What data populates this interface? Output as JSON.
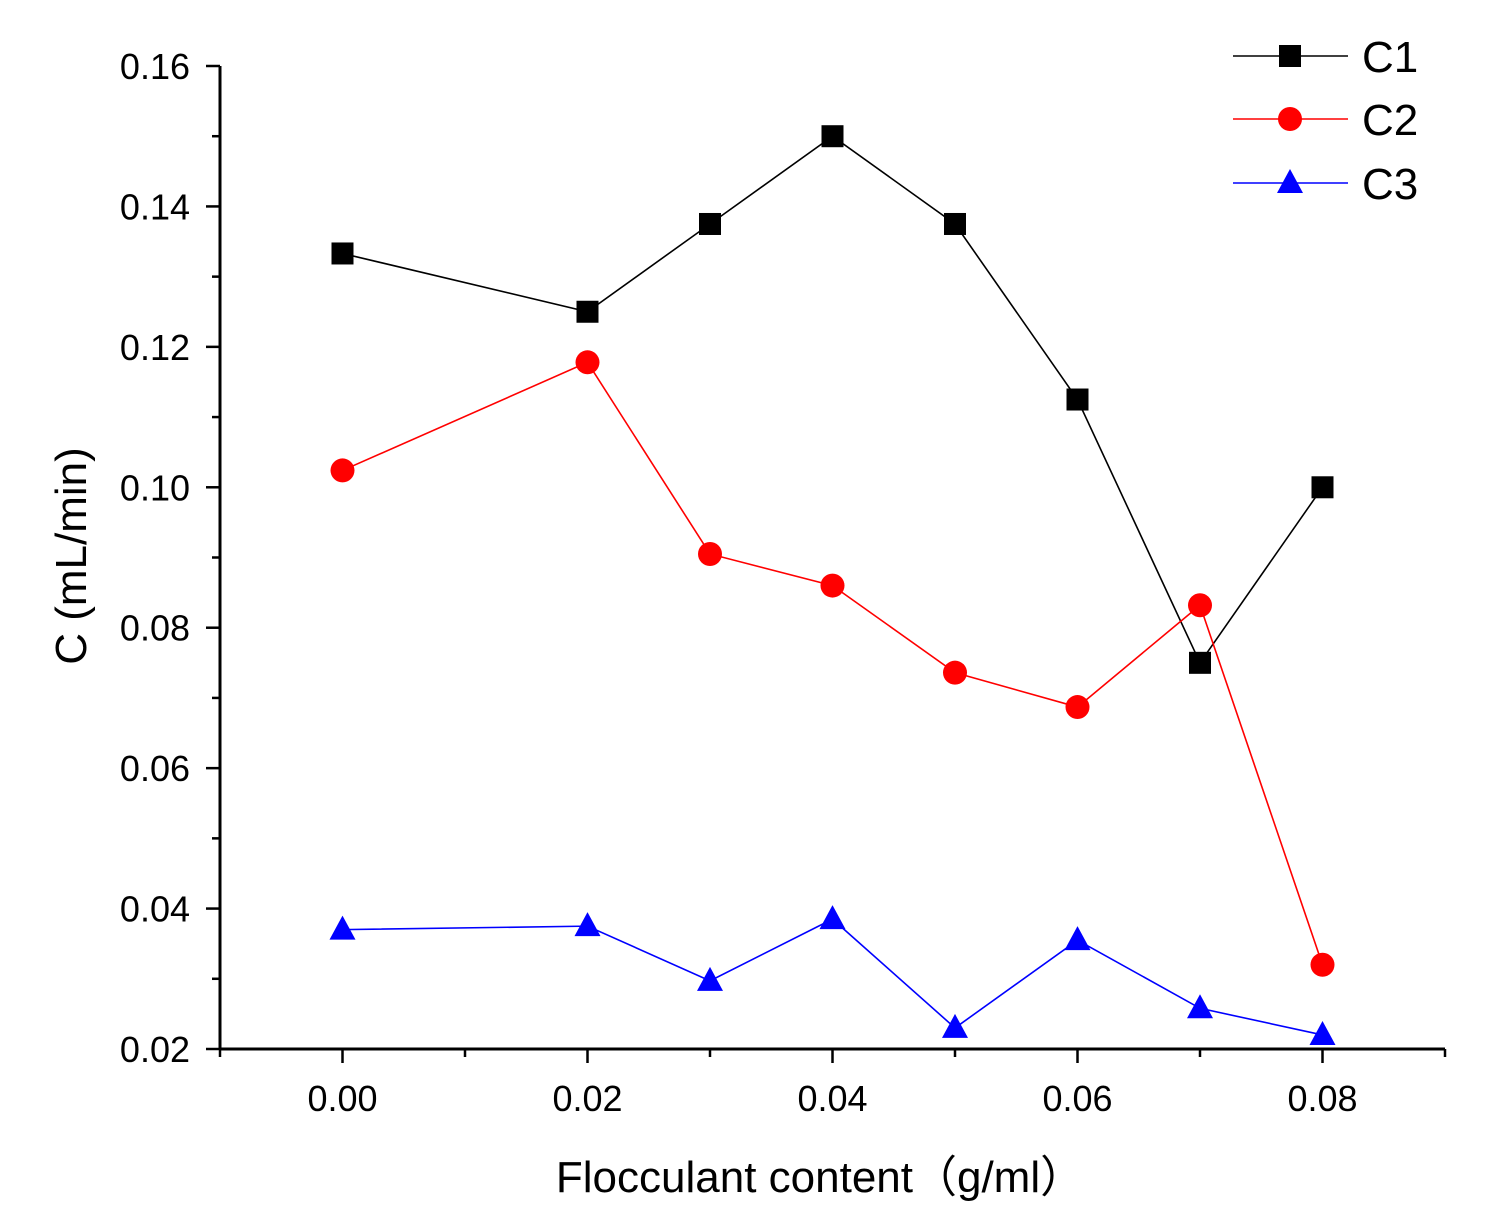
{
  "chart_data": {
    "type": "line",
    "title": "",
    "xlabel": "Flocculant content（g/ml）",
    "ylabel": "C (mL/min)",
    "xlim": [
      -0.01,
      0.09
    ],
    "ylim": [
      0.02,
      0.16
    ],
    "xticks": [
      "0.00",
      "0.02",
      "0.04",
      "0.06",
      "0.08"
    ],
    "yticks": [
      "0.02",
      "0.04",
      "0.06",
      "0.08",
      "0.10",
      "0.12",
      "0.14",
      "0.16"
    ],
    "grid": false,
    "legend_position": "top-right",
    "x": [
      0.0,
      0.02,
      0.03,
      0.04,
      0.05,
      0.06,
      0.07,
      0.08
    ],
    "series": [
      {
        "name": "C1",
        "color": "#000000",
        "line_color": "#000000",
        "marker": "square",
        "values": [
          0.1333,
          0.125,
          0.1375,
          0.15,
          0.1375,
          0.1125,
          0.075,
          0.1
        ]
      },
      {
        "name": "C2",
        "color": "#ff0000",
        "line_color": "#ff0000",
        "marker": "circle",
        "values": [
          0.1024,
          0.1178,
          0.0905,
          0.086,
          0.0736,
          0.0687,
          0.0832,
          0.032
        ]
      },
      {
        "name": "C3",
        "color": "#0000ff",
        "line_color": "#0000ff",
        "marker": "triangle",
        "values": [
          0.037,
          0.0375,
          0.0297,
          0.0385,
          0.023,
          0.0355,
          0.0258,
          0.022
        ]
      }
    ]
  }
}
